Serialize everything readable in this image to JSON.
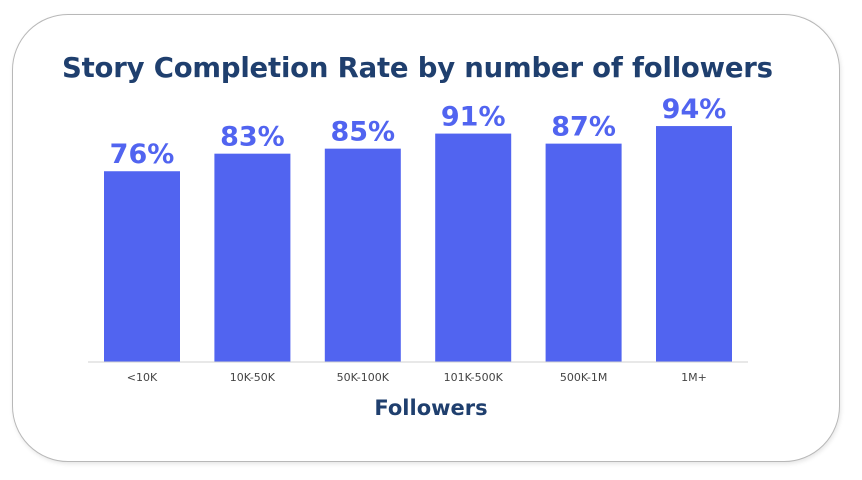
{
  "chart_data": {
    "type": "bar",
    "title": "Story Completion Rate by number of followers",
    "xlabel": "Followers",
    "ylabel": "",
    "categories": [
      "<10K",
      "10K-50K",
      "50K-100K",
      "101K-500K",
      "500K-1M",
      "1M+"
    ],
    "values": [
      76,
      83,
      85,
      91,
      87,
      94
    ],
    "value_labels": [
      "76%",
      "83%",
      "85%",
      "91%",
      "87%",
      "94%"
    ],
    "ylim": [
      0,
      100
    ],
    "grid": false,
    "legend": "none",
    "bar_color": "#5164f0",
    "label_color": "#5164f0",
    "title_color": "#1f3f6e"
  }
}
